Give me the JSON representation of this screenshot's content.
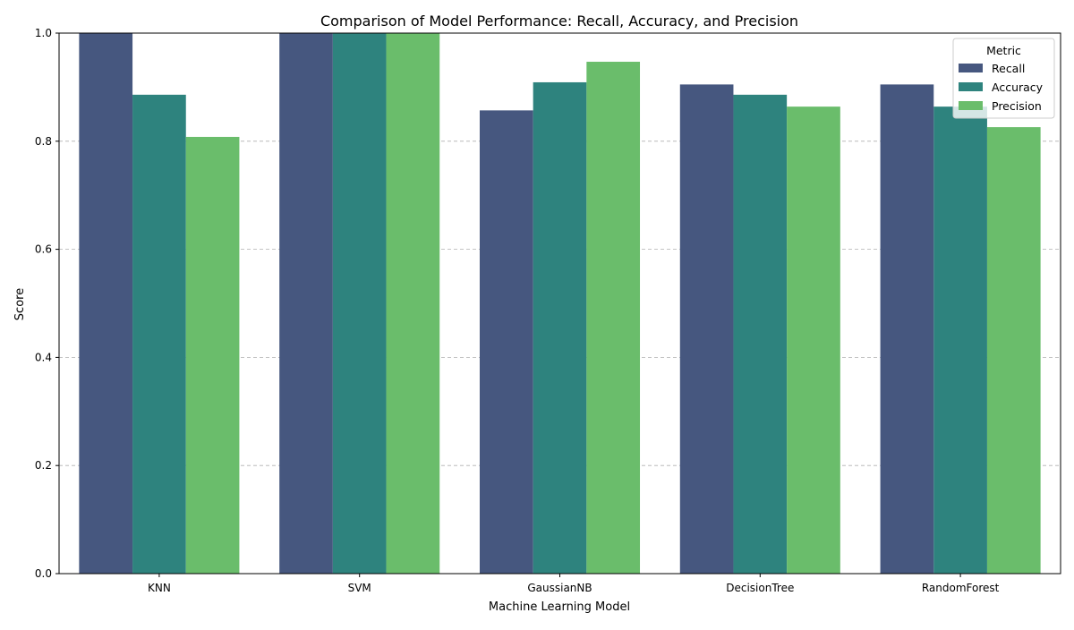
{
  "chart_data": {
    "type": "bar",
    "title": "Comparison of Model Performance: Recall, Accuracy, and Precision",
    "xlabel": "Machine Learning Model",
    "ylabel": "Score",
    "ylim": [
      0,
      1
    ],
    "yticks": [
      0.0,
      0.2,
      0.4,
      0.6,
      0.8,
      1.0
    ],
    "ytick_labels": [
      "0.0",
      "0.2",
      "0.4",
      "0.6",
      "0.8",
      "1.0"
    ],
    "grid": "y-dashed",
    "categories": [
      "KNN",
      "SVM",
      "GaussianNB",
      "DecisionTree",
      "RandomForest"
    ],
    "series": [
      {
        "name": "Recall",
        "color": "#46577f",
        "values": [
          1.0,
          1.0,
          0.857,
          0.905,
          0.905
        ]
      },
      {
        "name": "Accuracy",
        "color": "#2e837e",
        "values": [
          0.886,
          1.0,
          0.909,
          0.886,
          0.864
        ]
      },
      {
        "name": "Precision",
        "color": "#6abd6b",
        "values": [
          0.808,
          1.0,
          0.947,
          0.864,
          0.826
        ]
      }
    ],
    "legend": {
      "title": "Metric",
      "placement": "top-right"
    }
  }
}
